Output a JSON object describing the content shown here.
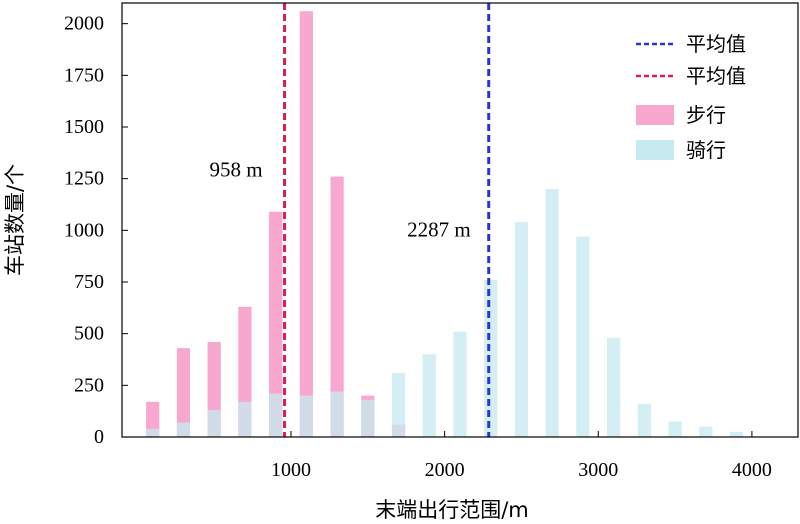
{
  "chart_data": {
    "type": "bar",
    "xlabel": "末端出行范围/m",
    "ylabel": "车站数量/个",
    "xlim": [
      -100,
      4300
    ],
    "ylim": [
      0,
      2100
    ],
    "xticks": [
      1000,
      2000,
      3000,
      4000
    ],
    "yticks": [
      0,
      250,
      500,
      750,
      1000,
      1250,
      1500,
      1750,
      2000
    ],
    "bin_width": 100,
    "legend_position": "top-right",
    "colors": {
      "walk": "#f8a8cf",
      "bike": "#c7eaf0",
      "walk_mean": "#d62050",
      "bike_mean": "#2a35d8"
    },
    "series": [
      {
        "name": "步行",
        "x": [
          100,
          300,
          500,
          700,
          900,
          1100,
          1300,
          1500,
          1700
        ],
        "values": [
          170,
          430,
          460,
          630,
          1090,
          2060,
          1260,
          200,
          60
        ]
      },
      {
        "name": "骑行",
        "x": [
          100,
          300,
          500,
          700,
          900,
          1100,
          1300,
          1500,
          1700,
          1900,
          2100,
          2300,
          2500,
          2700,
          2900,
          3100,
          3300,
          3500,
          3700,
          3900
        ],
        "values": [
          40,
          70,
          130,
          170,
          210,
          200,
          220,
          180,
          310,
          400,
          510,
          760,
          1040,
          1200,
          970,
          480,
          160,
          75,
          50,
          25
        ]
      }
    ],
    "mean_lines": [
      {
        "name": "平均值",
        "series": "骑行",
        "value": 2287,
        "label": "2287 m"
      },
      {
        "name": "平均值",
        "series": "步行",
        "value": 958,
        "label": "958 m"
      }
    ],
    "legend": [
      "平均值",
      "平均值",
      "步行",
      "骑行"
    ]
  }
}
